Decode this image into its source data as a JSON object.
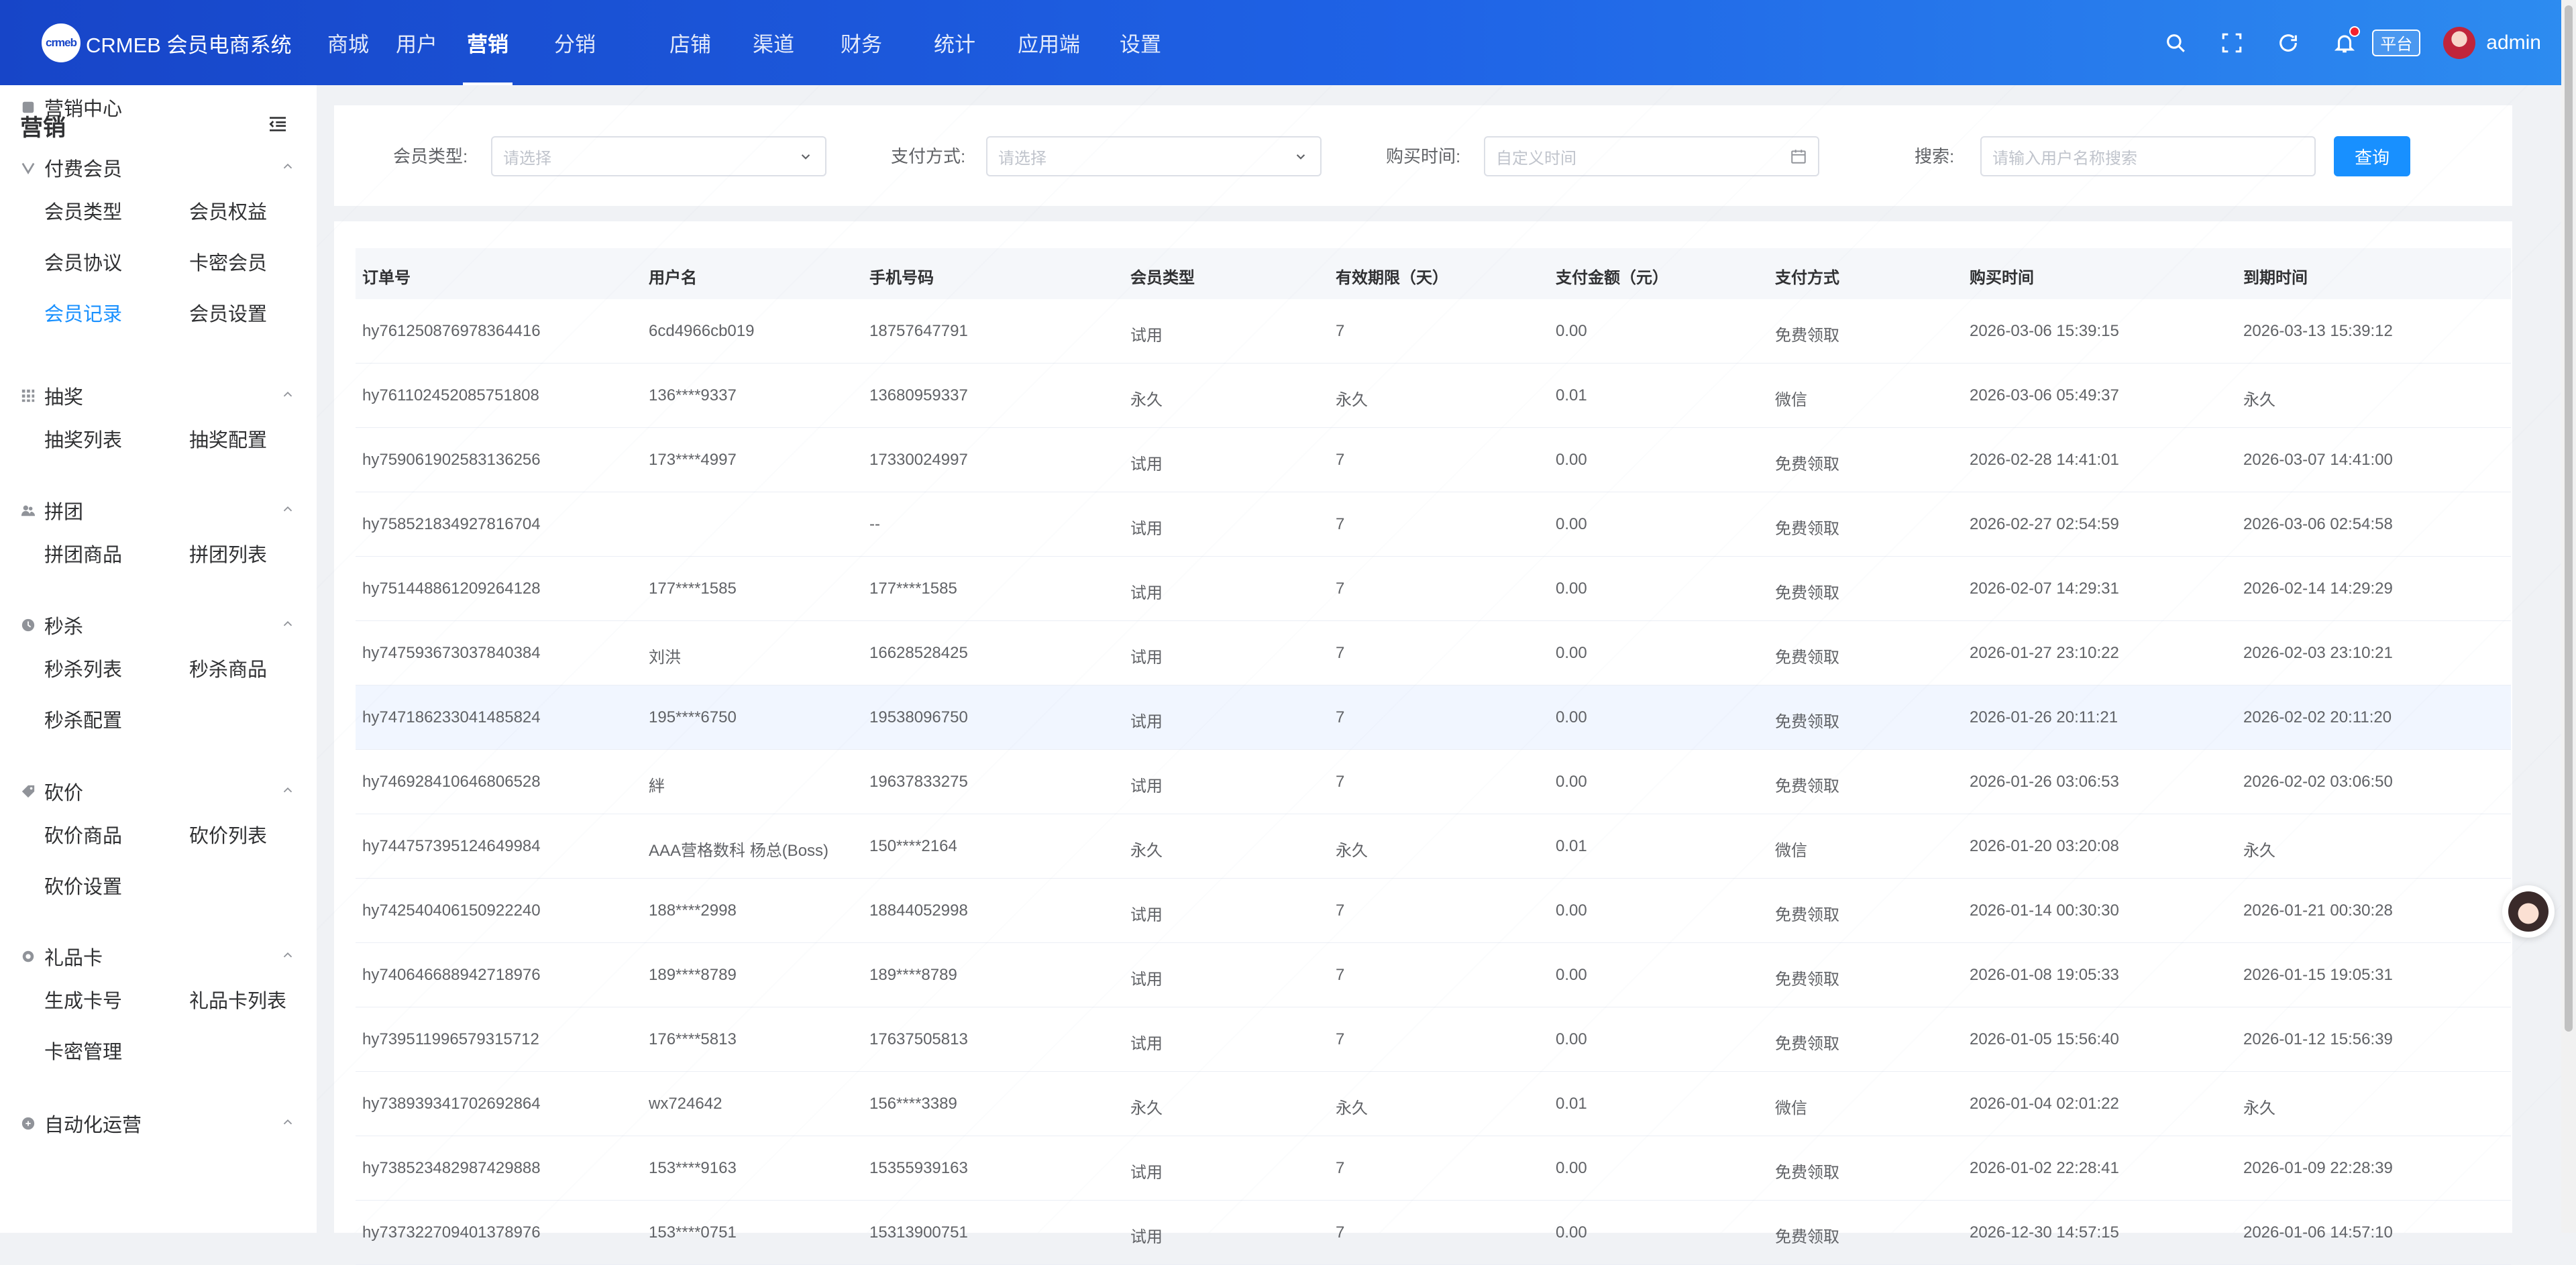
{
  "header": {
    "logo_mark": "crmeb",
    "logo_text": "CRMEB 会员电商系统",
    "nav": [
      {
        "label": "商城",
        "active": false
      },
      {
        "label": "用户",
        "active": false
      },
      {
        "label": "营销",
        "active": true
      },
      {
        "label": "分销",
        "active": false
      },
      {
        "label": "店铺",
        "active": false
      },
      {
        "label": "渠道",
        "active": false
      },
      {
        "label": "财务",
        "active": false
      },
      {
        "label": "统计",
        "active": false
      },
      {
        "label": "应用端",
        "active": false
      },
      {
        "label": "设置",
        "active": false
      }
    ],
    "platform_tag": "平台",
    "admin_name": "admin"
  },
  "sidebar": {
    "title": "营销",
    "groups": [
      {
        "label": "营销中心",
        "icon": "marketing-center-icon",
        "expandable": false,
        "items": []
      },
      {
        "label": "付费会员",
        "icon": "vip-icon",
        "expandable": true,
        "items": [
          "会员类型",
          "会员权益",
          "会员协议",
          "卡密会员",
          "会员记录",
          "会员设置"
        ]
      },
      {
        "label": "抽奖",
        "icon": "grid-icon",
        "expandable": true,
        "items": [
          "抽奖列表",
          "抽奖配置"
        ]
      },
      {
        "label": "拼团",
        "icon": "group-buy-icon",
        "expandable": true,
        "items": [
          "拼团商品",
          "拼团列表"
        ]
      },
      {
        "label": "秒杀",
        "icon": "clock-icon",
        "expandable": true,
        "items": [
          "秒杀列表",
          "秒杀商品",
          "秒杀配置"
        ]
      },
      {
        "label": "砍价",
        "icon": "tag-icon",
        "expandable": true,
        "items": [
          "砍价商品",
          "砍价列表",
          "砍价设置"
        ]
      },
      {
        "label": "礼品卡",
        "icon": "gear-icon",
        "expandable": true,
        "items": [
          "生成卡号",
          "礼品卡列表",
          "卡密管理"
        ]
      },
      {
        "label": "自动化运营",
        "icon": "automation-icon",
        "expandable": true,
        "items": []
      }
    ],
    "active_item": "会员记录"
  },
  "filters": {
    "member_type_label": "会员类型:",
    "member_type_placeholder": "请选择",
    "pay_method_label": "支付方式:",
    "pay_method_placeholder": "请选择",
    "buy_time_label": "购买时间:",
    "buy_time_placeholder": "自定义时间",
    "search_label": "搜索:",
    "search_placeholder": "请输入用户名称搜索",
    "query_button": "查询"
  },
  "table": {
    "columns": [
      "订单号",
      "用户名",
      "手机号码",
      "会员类型",
      "有效期限（天）",
      "支付金额（元）",
      "支付方式",
      "购买时间",
      "到期时间"
    ],
    "rows": [
      [
        "hy761250876978364416",
        "6cd4966cb019",
        "18757647791",
        "试用",
        "7",
        "0.00",
        "免费领取",
        "2026-03-06 15:39:15",
        "2026-03-13 15:39:12"
      ],
      [
        "hy761102452085751808",
        "136****9337",
        "13680959337",
        "永久",
        "永久",
        "0.01",
        "微信",
        "2026-03-06 05:49:37",
        "永久"
      ],
      [
        "hy759061902583136256",
        "173****4997",
        "17330024997",
        "试用",
        "7",
        "0.00",
        "免费领取",
        "2026-02-28 14:41:01",
        "2026-03-07 14:41:00"
      ],
      [
        "hy758521834927816704",
        "",
        "--",
        "试用",
        "7",
        "0.00",
        "免费领取",
        "2026-02-27 02:54:59",
        "2026-03-06 02:54:58"
      ],
      [
        "hy751448861209264128",
        "177****1585",
        "177****1585",
        "试用",
        "7",
        "0.00",
        "免费领取",
        "2026-02-07 14:29:31",
        "2026-02-14 14:29:29"
      ],
      [
        "hy747593673037840384",
        "刘洪",
        "16628528425",
        "试用",
        "7",
        "0.00",
        "免费领取",
        "2026-01-27 23:10:22",
        "2026-02-03 23:10:21"
      ],
      [
        "hy747186233041485824",
        "195****6750",
        "19538096750",
        "试用",
        "7",
        "0.00",
        "免费领取",
        "2026-01-26 20:11:21",
        "2026-02-02 20:11:20"
      ],
      [
        "hy746928410646806528",
        "絆",
        "19637833275",
        "试用",
        "7",
        "0.00",
        "免费领取",
        "2026-01-26 03:06:53",
        "2026-02-02 03:06:50"
      ],
      [
        "hy744757395124649984",
        "AAA营格数科 杨总(Boss)",
        "150****2164",
        "永久",
        "永久",
        "0.01",
        "微信",
        "2026-01-20 03:20:08",
        "永久"
      ],
      [
        "hy742540406150922240",
        "188****2998",
        "18844052998",
        "试用",
        "7",
        "0.00",
        "免费领取",
        "2026-01-14 00:30:30",
        "2026-01-21 00:30:28"
      ],
      [
        "hy740646688942718976",
        "189****8789",
        "189****8789",
        "试用",
        "7",
        "0.00",
        "免费领取",
        "2026-01-08 19:05:33",
        "2026-01-15 19:05:31"
      ],
      [
        "hy739511996579315712",
        "176****5813",
        "17637505813",
        "试用",
        "7",
        "0.00",
        "免费领取",
        "2026-01-05 15:56:40",
        "2026-01-12 15:56:39"
      ],
      [
        "hy738939341702692864",
        "wx724642",
        "156****3389",
        "永久",
        "永久",
        "0.01",
        "微信",
        "2026-01-04 02:01:22",
        "永久"
      ],
      [
        "hy738523482987429888",
        "153****9163",
        "15355939163",
        "试用",
        "7",
        "0.00",
        "免费领取",
        "2026-01-02 22:28:41",
        "2026-01-09 22:28:39"
      ],
      [
        "hy737322709401378976",
        "153****0751",
        "15313900751",
        "试用",
        "7",
        "0.00",
        "免费领取",
        "2026-12-30 14:57:15",
        "2026-01-06 14:57:10"
      ]
    ],
    "highlight_row": 6
  },
  "colors": {
    "primary": "#1890ff",
    "header_start": "#1745c8",
    "header_end": "#2d8cf0"
  }
}
